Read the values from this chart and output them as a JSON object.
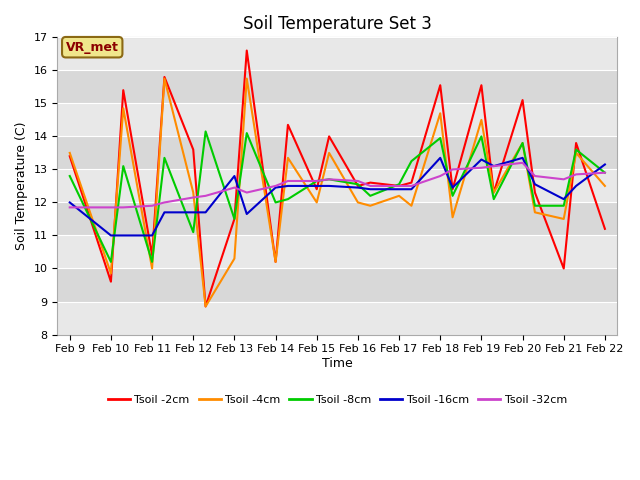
{
  "title": "Soil Temperature Set 3",
  "xlabel": "Time",
  "ylabel": "Soil Temperature (C)",
  "ylim": [
    8.0,
    17.0
  ],
  "yticks": [
    8.0,
    9.0,
    10.0,
    11.0,
    12.0,
    13.0,
    14.0,
    15.0,
    16.0,
    17.0
  ],
  "bg_light": "#e8e8e8",
  "bg_dark": "#d8d8d8",
  "annotation_text": "VR_met",
  "annotation_box_color": "#f0e68c",
  "annotation_text_color": "#8B0000",
  "annotation_edge_color": "#8B6914",
  "x_labels": [
    "Feb 9",
    "Feb 10",
    "Feb 11",
    "Feb 12",
    "Feb 13",
    "Feb 14",
    "Feb 15",
    "Feb 16",
    "Feb 17",
    "Feb 18",
    "Feb 19",
    "Feb 20",
    "Feb 21",
    "Feb 22"
  ],
  "series": {
    "Tsoil -2cm": {
      "color": "#FF0000",
      "data_x": [
        0,
        1,
        1.3,
        2,
        2.3,
        3,
        3.3,
        4,
        4.3,
        5,
        5.3,
        6,
        6.3,
        7,
        7.3,
        8,
        8.3,
        9,
        9.3,
        10,
        10.3,
        11,
        11.3,
        12,
        12.3,
        13
      ],
      "data_y": [
        13.4,
        9.6,
        15.4,
        10.4,
        15.8,
        13.6,
        8.85,
        11.5,
        16.6,
        10.2,
        14.35,
        12.4,
        14.0,
        12.5,
        12.6,
        12.5,
        12.6,
        15.55,
        12.4,
        15.55,
        12.3,
        15.1,
        12.3,
        10.0,
        13.8,
        11.2
      ]
    },
    "Tsoil -4cm": {
      "color": "#FF8C00",
      "data_x": [
        0,
        1,
        1.3,
        2,
        2.3,
        3,
        3.3,
        4,
        4.3,
        5,
        5.3,
        6,
        6.3,
        7,
        7.3,
        8,
        8.3,
        9,
        9.3,
        10,
        10.3,
        11,
        11.3,
        12,
        12.3,
        13
      ],
      "data_y": [
        13.5,
        9.85,
        14.85,
        10.0,
        15.75,
        12.3,
        8.85,
        10.3,
        15.75,
        10.2,
        13.35,
        12.0,
        13.5,
        12.0,
        11.9,
        12.2,
        11.9,
        14.7,
        11.55,
        14.5,
        12.3,
        13.8,
        11.7,
        11.5,
        13.5,
        12.5
      ]
    },
    "Tsoil -8cm": {
      "color": "#00CC00",
      "data_x": [
        0,
        1,
        1.3,
        2,
        2.3,
        3,
        3.3,
        4,
        4.3,
        5,
        5.3,
        6,
        6.3,
        7,
        7.3,
        8,
        8.3,
        9,
        9.3,
        10,
        10.3,
        11,
        11.3,
        12,
        12.3,
        13
      ],
      "data_y": [
        12.8,
        10.2,
        13.1,
        10.2,
        13.35,
        11.1,
        14.15,
        11.5,
        14.1,
        12.0,
        12.1,
        12.65,
        12.7,
        12.55,
        12.2,
        12.55,
        13.25,
        13.95,
        12.2,
        14.0,
        12.1,
        13.8,
        11.9,
        11.9,
        13.6,
        12.9
      ]
    },
    "Tsoil -16cm": {
      "color": "#0000CC",
      "data_x": [
        0,
        1,
        1.3,
        2,
        2.3,
        3,
        3.3,
        4,
        4.3,
        5,
        5.3,
        6,
        6.3,
        7,
        7.3,
        8,
        8.3,
        9,
        9.3,
        10,
        10.3,
        11,
        11.3,
        12,
        12.3,
        13
      ],
      "data_y": [
        12.0,
        11.0,
        11.0,
        11.0,
        11.7,
        11.7,
        11.7,
        12.8,
        11.65,
        12.45,
        12.5,
        12.5,
        12.5,
        12.45,
        12.4,
        12.4,
        12.4,
        13.35,
        12.45,
        13.3,
        13.1,
        13.35,
        12.55,
        12.1,
        12.5,
        13.15
      ]
    },
    "Tsoil -32cm": {
      "color": "#CC44CC",
      "data_x": [
        0,
        1,
        1.3,
        2,
        2.3,
        3,
        3.3,
        4,
        4.3,
        5,
        5.3,
        6,
        6.3,
        7,
        7.3,
        8,
        8.3,
        9,
        9.3,
        10,
        10.3,
        11,
        11.3,
        12,
        12.3,
        13
      ],
      "data_y": [
        11.85,
        11.85,
        11.85,
        11.9,
        12.0,
        12.15,
        12.2,
        12.45,
        12.3,
        12.5,
        12.65,
        12.65,
        12.7,
        12.65,
        12.5,
        12.5,
        12.5,
        12.8,
        13.0,
        13.05,
        13.1,
        13.2,
        12.8,
        12.7,
        12.85,
        12.9
      ]
    }
  }
}
